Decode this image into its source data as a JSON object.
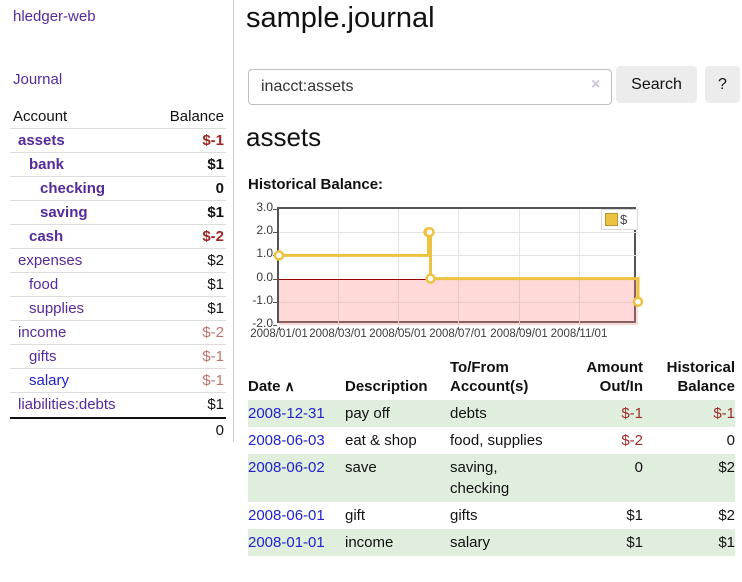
{
  "colors": {
    "link_purple": "#552a9b",
    "link_blue": "#2222cc",
    "negative_red": "#9e2625",
    "negative_red_dim": "#c27272",
    "row_green": "#dfeedd",
    "chart_gold": "#edc240",
    "chart_negative_zone_pink": "#ffd9d9",
    "chart_zero_line": "#990000",
    "button_gray": "#ececec"
  },
  "sidebar": {
    "brand": "hledger-web",
    "journal_link": "Journal",
    "accounts_table": {
      "header": {
        "account": "Account",
        "balance": "Balance"
      },
      "rows": [
        {
          "name": "assets",
          "depth": 1,
          "bold": true,
          "balance": "$-1",
          "negative": true,
          "link_color": "purple"
        },
        {
          "name": "bank",
          "depth": 2,
          "bold": true,
          "balance": "$1",
          "negative": false,
          "link_color": "purple"
        },
        {
          "name": "checking",
          "depth": 3,
          "bold": true,
          "balance": "0",
          "negative": false,
          "link_color": "purple"
        },
        {
          "name": "saving",
          "depth": 3,
          "bold": true,
          "balance": "$1",
          "negative": false,
          "link_color": "purple"
        },
        {
          "name": "cash",
          "depth": 2,
          "bold": true,
          "balance": "$-2",
          "negative": true,
          "link_color": "purple"
        },
        {
          "name": "expenses",
          "depth": 1,
          "bold": false,
          "balance": "$2",
          "negative": false,
          "link_color": "purple"
        },
        {
          "name": "food",
          "depth": 2,
          "bold": false,
          "balance": "$1",
          "negative": false,
          "link_color": "purple"
        },
        {
          "name": "supplies",
          "depth": 2,
          "bold": false,
          "balance": "$1",
          "negative": false,
          "link_color": "purple"
        },
        {
          "name": "income",
          "depth": 1,
          "bold": false,
          "balance": "$-2",
          "negative": true,
          "link_color": "purple"
        },
        {
          "name": "gifts",
          "depth": 2,
          "bold": false,
          "balance": "$-1",
          "negative": true,
          "link_color": "purple"
        },
        {
          "name": "salary",
          "depth": 2,
          "bold": false,
          "balance": "$-1",
          "negative": true,
          "link_color": "blue"
        },
        {
          "name": "liabilities:debts",
          "depth": 1,
          "bold": false,
          "balance": "$1",
          "negative": false,
          "link_color": "purple"
        }
      ],
      "total": "0"
    }
  },
  "main": {
    "title": "sample.journal",
    "search": {
      "value": "inacct:assets",
      "clear_icon": "×",
      "search_button": "Search",
      "help_button": "?"
    },
    "account_heading": "assets",
    "chart_title": "Historical Balance:"
  },
  "chart_data": {
    "type": "line",
    "steps": true,
    "series": [
      {
        "name": "$",
        "color": "#edc240",
        "points": [
          [
            "2008/01/01",
            1
          ],
          [
            "2008/06/01",
            2
          ],
          [
            "2008/06/02",
            2
          ],
          [
            "2008/06/03",
            0
          ],
          [
            "2008/12/31",
            -1
          ]
        ]
      }
    ],
    "x_range": [
      "2008/01/01",
      "2008/12/31"
    ],
    "ylim": [
      -2,
      3
    ],
    "y_tick_labels": [
      "3.0",
      "2.0",
      "1.0",
      "0.0",
      "-1.0",
      "-2.0"
    ],
    "x_tick_labels": [
      "2008/01/01",
      "2008/03/01",
      "2008/05/01",
      "2008/07/01",
      "2008/09/01",
      "2008/11/01"
    ],
    "legend": {
      "label": "$",
      "position": "top-right"
    },
    "grid": true,
    "negative_zone_shaded": true
  },
  "register": {
    "headers": {
      "date": "Date",
      "sort_icon": "∧",
      "description": "Description",
      "accounts": "To/From Account(s)",
      "amount": "Amount Out/In",
      "balance": "Historical Balance"
    },
    "rows": [
      {
        "date": "2008-12-31",
        "description": "pay off",
        "accounts_lines": [
          "debts"
        ],
        "amount": "$-1",
        "amount_negative": true,
        "balance": "$-1",
        "balance_negative": true
      },
      {
        "date": "2008-06-03",
        "description": "eat & shop",
        "accounts_lines": [
          "food, supplies"
        ],
        "amount": "$-2",
        "amount_negative": true,
        "balance": "0",
        "balance_negative": false
      },
      {
        "date": "2008-06-02",
        "description": "save",
        "accounts_lines": [
          "saving,",
          "checking"
        ],
        "amount": "0",
        "amount_negative": false,
        "balance": "$2",
        "balance_negative": false
      },
      {
        "date": "2008-06-01",
        "description": "gift",
        "accounts_lines": [
          "gifts"
        ],
        "amount": "$1",
        "amount_negative": false,
        "balance": "$2",
        "balance_negative": false
      },
      {
        "date": "2008-01-01",
        "description": "income",
        "accounts_lines": [
          "salary"
        ],
        "amount": "$1",
        "amount_negative": false,
        "balance": "$1",
        "balance_negative": false
      }
    ]
  }
}
